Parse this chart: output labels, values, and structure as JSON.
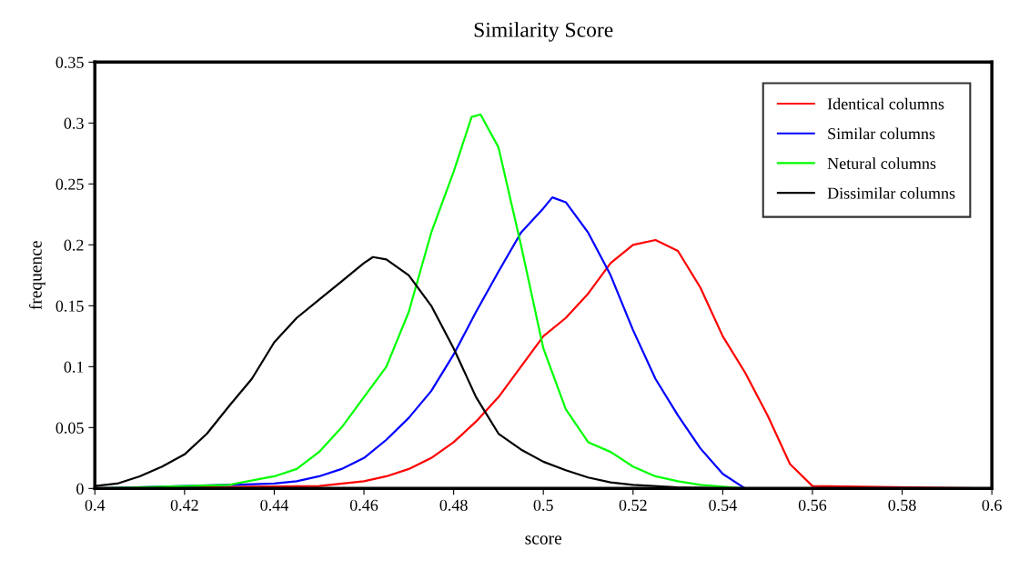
{
  "chart_data": {
    "type": "line",
    "title": "Similarity Score",
    "xlabel": "score",
    "ylabel": "frequence",
    "xlim": [
      0.4,
      0.6
    ],
    "xticks": [
      0.4,
      0.42,
      0.44,
      0.46,
      0.48,
      0.5,
      0.52,
      0.54,
      0.56,
      0.58,
      0.6
    ],
    "ylim": [
      0,
      0.35
    ],
    "yticks": [
      0,
      0.05,
      0.1,
      0.15,
      0.2,
      0.25,
      0.3,
      0.35
    ],
    "grid": false,
    "legend": "top right",
    "marker": "none",
    "line_style": "solid",
    "series": [
      {
        "name": "Identical columns",
        "color": "#ff0000",
        "x": [
          0.4,
          0.45,
          0.46,
          0.465,
          0.47,
          0.475,
          0.48,
          0.485,
          0.49,
          0.495,
          0.5,
          0.505,
          0.51,
          0.515,
          0.52,
          0.525,
          0.53,
          0.535,
          0.54,
          0.545,
          0.55,
          0.555,
          0.56,
          0.6
        ],
        "values": [
          0,
          0.002,
          0.006,
          0.01,
          0.016,
          0.025,
          0.038,
          0.055,
          0.075,
          0.1,
          0.125,
          0.14,
          0.16,
          0.185,
          0.2,
          0.204,
          0.195,
          0.165,
          0.125,
          0.095,
          0.06,
          0.02,
          0.002,
          0
        ]
      },
      {
        "name": "Similar columns",
        "color": "#0000ff",
        "x": [
          0.4,
          0.44,
          0.445,
          0.45,
          0.455,
          0.46,
          0.465,
          0.47,
          0.475,
          0.48,
          0.485,
          0.49,
          0.495,
          0.5,
          0.502,
          0.505,
          0.51,
          0.515,
          0.52,
          0.525,
          0.53,
          0.535,
          0.54,
          0.545,
          0.6
        ],
        "values": [
          0,
          0.004,
          0.006,
          0.01,
          0.016,
          0.025,
          0.04,
          0.058,
          0.08,
          0.11,
          0.145,
          0.178,
          0.21,
          0.23,
          0.239,
          0.235,
          0.21,
          0.175,
          0.13,
          0.09,
          0.06,
          0.033,
          0.012,
          0,
          0
        ]
      },
      {
        "name": "Netural columns",
        "color": "#00ff00",
        "x": [
          0.4,
          0.43,
          0.44,
          0.445,
          0.45,
          0.455,
          0.46,
          0.465,
          0.47,
          0.475,
          0.48,
          0.484,
          0.486,
          0.49,
          0.495,
          0.5,
          0.505,
          0.51,
          0.515,
          0.52,
          0.525,
          0.53,
          0.535,
          0.545,
          0.6
        ],
        "values": [
          0,
          0.003,
          0.01,
          0.016,
          0.03,
          0.05,
          0.075,
          0.1,
          0.145,
          0.21,
          0.26,
          0.305,
          0.307,
          0.28,
          0.2,
          0.115,
          0.065,
          0.038,
          0.03,
          0.018,
          0.01,
          0.006,
          0.003,
          0,
          0
        ]
      },
      {
        "name": "Dissimilar columns",
        "color": "#000000",
        "x": [
          0.4,
          0.405,
          0.41,
          0.415,
          0.42,
          0.425,
          0.43,
          0.435,
          0.44,
          0.445,
          0.45,
          0.455,
          0.46,
          0.462,
          0.465,
          0.47,
          0.475,
          0.48,
          0.485,
          0.49,
          0.495,
          0.5,
          0.505,
          0.51,
          0.515,
          0.52,
          0.53,
          0.54,
          0.6
        ],
        "values": [
          0.002,
          0.004,
          0.01,
          0.018,
          0.028,
          0.045,
          0.068,
          0.09,
          0.12,
          0.14,
          0.155,
          0.17,
          0.185,
          0.19,
          0.188,
          0.175,
          0.15,
          0.115,
          0.075,
          0.045,
          0.032,
          0.022,
          0.015,
          0.009,
          0.005,
          0.003,
          0.001,
          0,
          0
        ]
      }
    ]
  }
}
